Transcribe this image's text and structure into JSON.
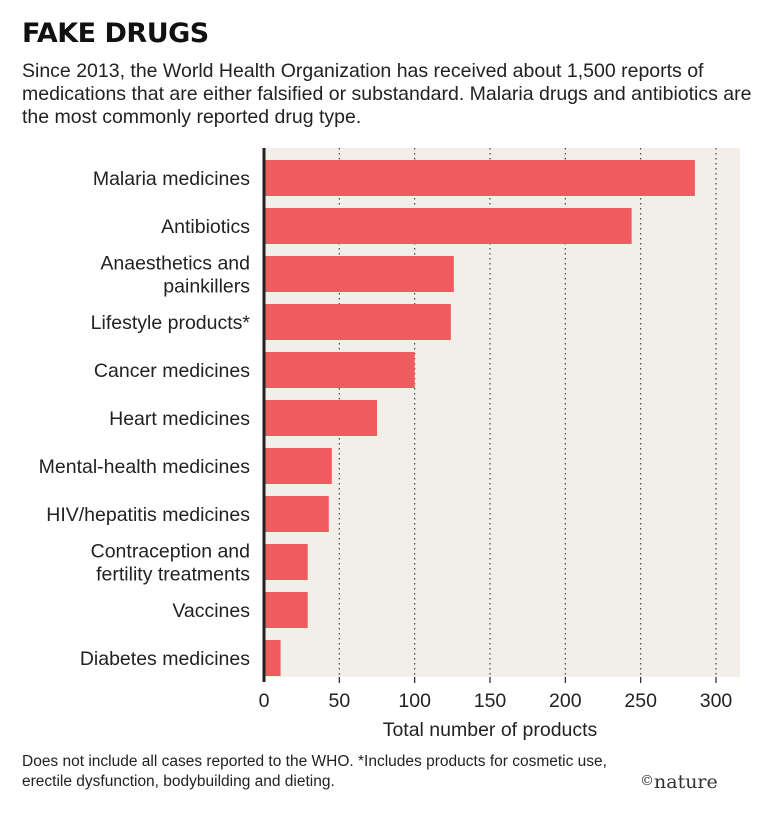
{
  "header": {
    "title": "FAKE DRUGS",
    "subtitle": "Since 2013, the World Health Organization has received about 1,500 reports of medications that are either falsified or substandard. Malaria drugs and antibiotics are the most commonly reported drug type."
  },
  "footer": {
    "note": "Does not include all cases reported to the WHO. *Includes products for cosmetic use, erectile dysfunction, bodybuilding and dieting.",
    "logo_copyright": "©",
    "logo_text": "nature"
  },
  "colors": {
    "bar": "#ef5b5f",
    "plot_background": "#f2efe8",
    "axis": "#222222",
    "grid": "#444444"
  },
  "chart_data": {
    "type": "bar",
    "orientation": "horizontal",
    "categories": [
      [
        "Malaria medicines"
      ],
      [
        "Antibiotics"
      ],
      [
        "Anaesthetics and",
        "painkillers"
      ],
      [
        "Lifestyle products*"
      ],
      [
        "Cancer medicines"
      ],
      [
        "Heart medicines"
      ],
      [
        "Mental-health medicines"
      ],
      [
        "HIV/hepatitis medicines"
      ],
      [
        "Contraception and",
        "fertility treatments"
      ],
      [
        "Vaccines"
      ],
      [
        "Diabetes medicines"
      ]
    ],
    "values": [
      286,
      244,
      126,
      124,
      100,
      75,
      45,
      43,
      29,
      29,
      11
    ],
    "xlabel": "Total number of products",
    "xlim": [
      0,
      300
    ],
    "xticks": [
      0,
      50,
      100,
      150,
      200,
      250,
      300
    ],
    "grid": "vertical dotted"
  }
}
